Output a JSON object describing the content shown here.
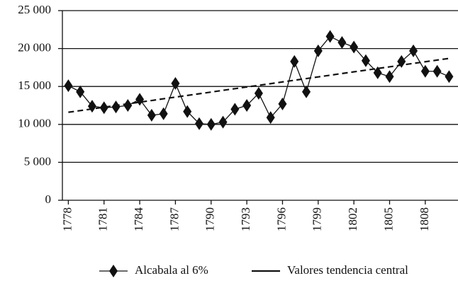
{
  "chart_data": {
    "type": "line",
    "x": [
      1778,
      1779,
      1780,
      1781,
      1782,
      1783,
      1784,
      1785,
      1786,
      1787,
      1788,
      1789,
      1790,
      1791,
      1792,
      1793,
      1794,
      1795,
      1796,
      1797,
      1798,
      1799,
      1800,
      1801,
      1802,
      1803,
      1804,
      1805,
      1806,
      1807,
      1808,
      1809,
      1810
    ],
    "series": [
      {
        "name": "Alcabala al 6%",
        "color": "#111111",
        "marker": "diamond",
        "dashed": false,
        "values": [
          15100,
          14300,
          12400,
          12200,
          12300,
          12500,
          13300,
          11200,
          11400,
          15400,
          11700,
          10100,
          10000,
          10300,
          12000,
          12500,
          14100,
          10900,
          12700,
          18300,
          14300,
          19700,
          21600,
          20800,
          20200,
          18400,
          16800,
          16300,
          18300,
          19700,
          17000,
          17000,
          16300
        ]
      },
      {
        "name": "Valores tendencia central",
        "color": "#111111",
        "marker": "none",
        "dashed": true,
        "values": [
          11600,
          11820,
          12040,
          12270,
          12490,
          12710,
          12930,
          13150,
          13380,
          13600,
          13820,
          14040,
          14260,
          14490,
          14710,
          14930,
          15150,
          15370,
          15600,
          15820,
          16040,
          16260,
          16480,
          16710,
          16930,
          17150,
          17370,
          17590,
          17820,
          18040,
          18260,
          18480,
          18700
        ]
      }
    ],
    "xlim": [
      1777.5,
      1810.75
    ],
    "xticks": [
      1778,
      1781,
      1784,
      1787,
      1790,
      1793,
      1796,
      1799,
      1802,
      1805,
      1808
    ],
    "ylim": [
      0,
      25000
    ],
    "yticks": [
      0,
      {
        "value": 5000,
        "label": "5 000"
      },
      {
        "value": 10000,
        "label": "10 000"
      },
      {
        "value": 15000,
        "label": "15 000"
      },
      {
        "value": 20000,
        "label": "20 000"
      },
      {
        "value": 25000,
        "label": "25 000"
      }
    ],
    "grid": true
  }
}
